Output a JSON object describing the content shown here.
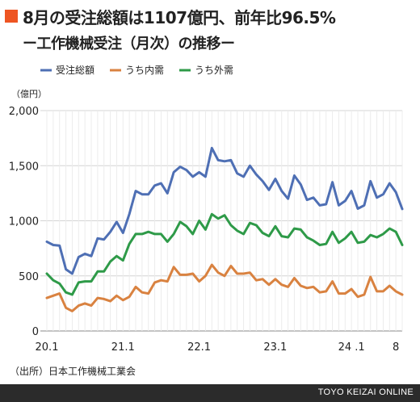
{
  "header": {
    "title": "8月の受注総額は1107億円、前年比96.5%",
    "subtitle": "ー工作機械受注（月次）の推移ー",
    "accent_color": "#ee5522"
  },
  "source_note": "（出所）日本工作機械工業会",
  "footer": {
    "brand": "TOYO KEIZAI ONLINE"
  },
  "chart_data": {
    "type": "line",
    "unit": "（億円）",
    "ylim": [
      0,
      2000
    ],
    "yticks": [
      0,
      500,
      1000,
      1500,
      2000
    ],
    "ytick_labels": [
      "0",
      "500",
      "1,000",
      "1,500",
      "2,000"
    ],
    "grid": true,
    "legend_position": "top",
    "x_tick_labels": [
      {
        "label": "20.1",
        "index": 0
      },
      {
        "label": "21.1",
        "index": 12
      },
      {
        "label": "22.1",
        "index": 24
      },
      {
        "label": "23.1",
        "index": 36
      },
      {
        "label": "24 .1",
        "index": 48
      },
      {
        "label": "8",
        "index": 55
      }
    ],
    "series": [
      {
        "name": "受注総額",
        "color": "#4e6fb4",
        "values": [
          810,
          780,
          775,
          560,
          520,
          670,
          700,
          680,
          840,
          830,
          900,
          990,
          890,
          1060,
          1270,
          1240,
          1240,
          1320,
          1340,
          1250,
          1440,
          1490,
          1460,
          1400,
          1440,
          1400,
          1660,
          1550,
          1540,
          1550,
          1430,
          1400,
          1500,
          1420,
          1360,
          1280,
          1380,
          1270,
          1200,
          1410,
          1330,
          1190,
          1210,
          1140,
          1150,
          1350,
          1140,
          1180,
          1270,
          1110,
          1140,
          1360,
          1210,
          1240,
          1340,
          1260,
          1107
        ]
      },
      {
        "name": "うち内需",
        "color": "#d98240",
        "values": [
          300,
          320,
          340,
          210,
          180,
          230,
          250,
          230,
          300,
          290,
          270,
          320,
          280,
          310,
          400,
          350,
          340,
          440,
          460,
          450,
          580,
          510,
          510,
          520,
          450,
          500,
          600,
          530,
          500,
          590,
          520,
          520,
          530,
          460,
          470,
          420,
          470,
          420,
          400,
          480,
          410,
          390,
          400,
          350,
          360,
          450,
          340,
          340,
          380,
          310,
          330,
          490,
          360,
          360,
          410,
          360,
          330
        ]
      },
      {
        "name": "うち外需",
        "color": "#2e9a48",
        "values": [
          520,
          460,
          430,
          350,
          330,
          440,
          450,
          450,
          540,
          540,
          630,
          680,
          640,
          790,
          880,
          880,
          900,
          880,
          880,
          810,
          880,
          990,
          950,
          880,
          1000,
          920,
          1060,
          1020,
          1050,
          960,
          910,
          880,
          980,
          960,
          890,
          860,
          950,
          860,
          850,
          930,
          920,
          850,
          820,
          780,
          790,
          900,
          800,
          840,
          900,
          800,
          810,
          870,
          850,
          880,
          930,
          900,
          780
        ]
      }
    ]
  }
}
